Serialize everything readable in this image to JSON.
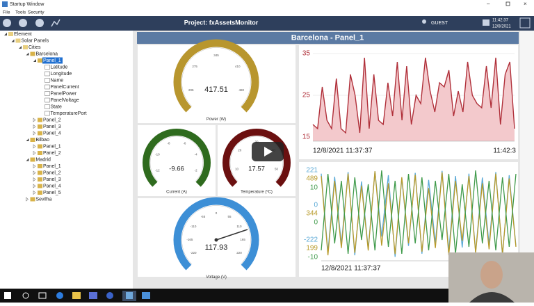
{
  "window": {
    "title": "Startup Window"
  },
  "menu": [
    "File",
    "Tools",
    "Security"
  ],
  "toolbar": {
    "project": "Project: fxAssetsMonitor",
    "user": "GUEST",
    "time": "11:42:37",
    "date": "12/8/2021"
  },
  "tree": [
    {
      "label": "Element",
      "level": 0
    },
    {
      "label": "Solar Panels",
      "level": 1
    },
    {
      "label": "Cities",
      "level": 2
    },
    {
      "label": "Barcelona",
      "level": 3
    },
    {
      "label": "Panel_1",
      "level": 4,
      "selected": true
    },
    {
      "label": "Latitude",
      "level": 5
    },
    {
      "label": "Longitude",
      "level": 5
    },
    {
      "label": "Name",
      "level": 5
    },
    {
      "label": "PanelCurrent",
      "level": 5
    },
    {
      "label": "PanelPower",
      "level": 5
    },
    {
      "label": "PanelVoltage",
      "level": 5
    },
    {
      "label": "State",
      "level": 5
    },
    {
      "label": "TemperaturePort",
      "level": 5
    },
    {
      "label": "Panel_2",
      "level": 4
    },
    {
      "label": "Panel_3",
      "level": 4
    },
    {
      "label": "Panel_4",
      "level": 4
    },
    {
      "label": "Bilbao",
      "level": 3
    },
    {
      "label": "Panel_1",
      "level": 4
    },
    {
      "label": "Panel_2",
      "level": 4
    },
    {
      "label": "Madrid",
      "level": 3
    },
    {
      "label": "Panel_1",
      "level": 4
    },
    {
      "label": "Panel_2",
      "level": 4
    },
    {
      "label": "Panel_3",
      "level": 4
    },
    {
      "label": "Panel_4",
      "level": 4
    },
    {
      "label": "Panel_5",
      "level": 4
    },
    {
      "label": "Sevilha",
      "level": 3
    }
  ],
  "panel_title": "Barcelona - Panel_1",
  "gauges": [
    {
      "value": 417.51,
      "label": "Power (W)",
      "color": "#b8962e",
      "ticks": [
        "205",
        "275",
        "345",
        "410",
        "480"
      ]
    },
    {
      "value": -9.66,
      "label": "Current (A)",
      "color": "#2f6b1e",
      "ticks": [
        "-12",
        "-10",
        "-8",
        "-6",
        "-4",
        "-2"
      ]
    },
    {
      "value": 17.57,
      "label": "Temperature (ºC)",
      "color": "#6b1010",
      "ticks": [
        "10",
        "20",
        "30",
        "40",
        "50"
      ]
    },
    {
      "value": 117.93,
      "label": "Voltage (V)",
      "color": "#3d8fd6",
      "ticks": [
        "-220",
        "-165",
        "-110",
        "-55",
        "0",
        "55",
        "110",
        "165",
        "220"
      ]
    }
  ],
  "trend": {
    "color": "#b0303a",
    "ylim": [
      14,
      36.5
    ],
    "yticks": [
      15,
      25,
      35
    ],
    "x_start": "12/8/2021 11:37:37",
    "x_end": "11:42:3",
    "values": [
      18,
      17,
      27,
      19,
      17,
      29,
      17,
      16,
      30,
      25,
      16,
      34,
      17,
      30,
      19,
      18,
      28,
      20,
      33,
      19,
      32,
      18,
      25,
      23,
      34,
      26,
      21,
      28,
      27,
      31,
      20,
      26,
      21,
      33,
      25,
      23,
      22,
      32,
      22,
      34,
      18,
      30,
      33,
      17
    ]
  },
  "multi": {
    "x_start": "12/8/2021 11:37:37",
    "series": [
      {
        "color": "#5aa9d6",
        "ylim": [
          -355,
          243
        ],
        "yticks": [
          221,
          0,
          -222
        ],
        "values": [
          200,
          -300,
          180,
          -250,
          210,
          -320,
          150,
          -280,
          215,
          -200,
          190,
          -330,
          170,
          -260,
          205,
          -310,
          160,
          -240,
          218,
          -290,
          185,
          -270,
          200,
          -300,
          175,
          -250,
          210,
          -320,
          190,
          -260
        ]
      },
      {
        "color": "#b89a2a",
        "ylim": [
          147,
          538
        ],
        "yticks": [
          489,
          344,
          199
        ],
        "values": [
          500,
          170,
          480,
          200,
          510,
          180,
          460,
          190,
          520,
          210,
          470,
          175,
          495,
          220,
          505,
          185,
          450,
          200,
          515,
          170,
          480,
          230,
          500,
          180,
          470,
          195,
          510,
          175,
          490,
          205
        ]
      },
      {
        "color": "#3f9a4a",
        "ylim": [
          -11,
          16
        ],
        "yticks": [
          10,
          0,
          -10
        ],
        "values": [
          -8,
          14,
          -6,
          12,
          -9,
          13,
          -5,
          11,
          -8,
          15,
          -7,
          12,
          -9,
          14,
          -6,
          13,
          -8,
          12,
          -5,
          14,
          -9,
          11,
          -7,
          15,
          -6,
          12,
          -8,
          13,
          -7,
          14
        ]
      }
    ]
  }
}
